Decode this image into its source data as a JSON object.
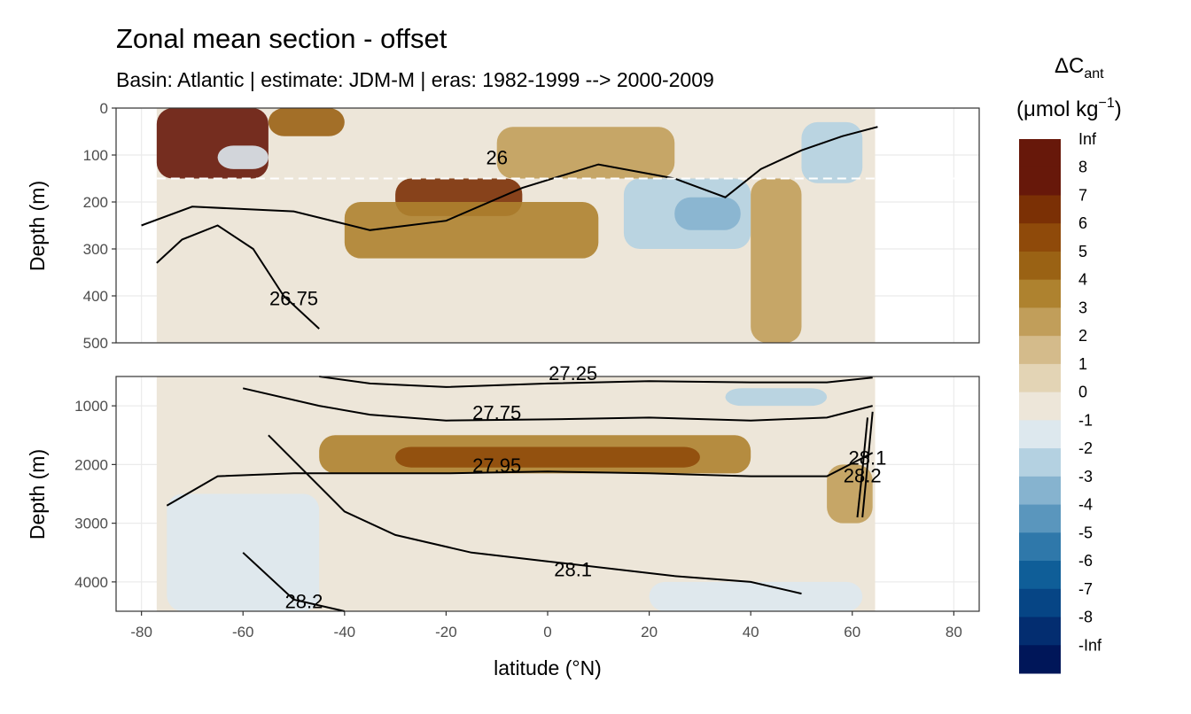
{
  "chart_data": {
    "type": "heatmap",
    "title": "Zonal mean section - offset",
    "subtitle": "Basin: Atlantic | estimate: JDM-M | eras: 1982-1999 --> 2000-2009",
    "xlabel": "latitude (°N)",
    "xlim": [
      -85,
      85
    ],
    "xticks": [
      -80,
      -60,
      -40,
      -20,
      0,
      20,
      40,
      60,
      80
    ],
    "panels": [
      {
        "name": "upper",
        "ylabel": "Depth (m)",
        "ylim": [
          500,
          0
        ],
        "yticks": [
          0,
          100,
          200,
          300,
          400,
          500
        ],
        "reference_line_depth": 150,
        "contours": [
          {
            "label": "26",
            "x": -10,
            "y": 120,
            "points": [
              [
                -80,
                250
              ],
              [
                -70,
                210
              ],
              [
                -50,
                220
              ],
              [
                -35,
                260
              ],
              [
                -20,
                240
              ],
              [
                -5,
                170
              ],
              [
                10,
                120
              ],
              [
                25,
                150
              ],
              [
                35,
                190
              ],
              [
                42,
                130
              ],
              [
                50,
                90
              ],
              [
                58,
                60
              ],
              [
                65,
                40
              ]
            ]
          },
          {
            "label": "26.75",
            "x": -50,
            "y": 420,
            "points": [
              [
                -77,
                330
              ],
              [
                -72,
                280
              ],
              [
                -65,
                250
              ],
              [
                -58,
                300
              ],
              [
                -52,
                400
              ],
              [
                -45,
                470
              ]
            ]
          }
        ],
        "cells": [
          {
            "lat": [
              -77,
              -55
            ],
            "depth": [
              0,
              150
            ],
            "value": 8
          },
          {
            "lat": [
              -55,
              -40
            ],
            "depth": [
              0,
              60
            ],
            "value": 5
          },
          {
            "lat": [
              -30,
              -5
            ],
            "depth": [
              150,
              230
            ],
            "value": 7
          },
          {
            "lat": [
              -40,
              10
            ],
            "depth": [
              200,
              320
            ],
            "value": 4
          },
          {
            "lat": [
              -10,
              25
            ],
            "depth": [
              40,
              150
            ],
            "value": 3
          },
          {
            "lat": [
              15,
              40
            ],
            "depth": [
              150,
              300
            ],
            "value": -2
          },
          {
            "lat": [
              25,
              38
            ],
            "depth": [
              190,
              260
            ],
            "value": -3
          },
          {
            "lat": [
              50,
              62
            ],
            "depth": [
              30,
              160
            ],
            "value": -2
          },
          {
            "lat": [
              -65,
              -55
            ],
            "depth": [
              80,
              130
            ],
            "value": -1
          },
          {
            "lat": [
              40,
              50
            ],
            "depth": [
              150,
              500
            ],
            "value": 3
          }
        ]
      },
      {
        "name": "lower",
        "ylabel": "Depth (m)",
        "ylim": [
          4500,
          500
        ],
        "yticks": [
          1000,
          2000,
          3000,
          4000
        ],
        "contours": [
          {
            "label": "27.25",
            "x": 5,
            "y": 560,
            "points": [
              [
                -45,
                500
              ],
              [
                -35,
                620
              ],
              [
                -20,
                680
              ],
              [
                0,
                620
              ],
              [
                20,
                580
              ],
              [
                40,
                600
              ],
              [
                55,
                600
              ],
              [
                64,
                520
              ]
            ]
          },
          {
            "label": "27.75",
            "x": -10,
            "y": 1230,
            "points": [
              [
                -60,
                700
              ],
              [
                -45,
                1000
              ],
              [
                -35,
                1150
              ],
              [
                -20,
                1250
              ],
              [
                0,
                1230
              ],
              [
                20,
                1200
              ],
              [
                40,
                1250
              ],
              [
                55,
                1200
              ],
              [
                64,
                1000
              ]
            ]
          },
          {
            "label": "27.95",
            "x": -10,
            "y": 2130,
            "points": [
              [
                -75,
                2700
              ],
              [
                -65,
                2200
              ],
              [
                -50,
                2150
              ],
              [
                -35,
                2150
              ],
              [
                -20,
                2150
              ],
              [
                0,
                2120
              ],
              [
                20,
                2150
              ],
              [
                40,
                2200
              ],
              [
                55,
                2200
              ],
              [
                64,
                1800
              ]
            ]
          },
          {
            "label": "28.1",
            "x": 5,
            "y": 3900,
            "points": [
              [
                -55,
                1500
              ],
              [
                -40,
                2800
              ],
              [
                -30,
                3200
              ],
              [
                -15,
                3500
              ],
              [
                0,
                3650
              ],
              [
                15,
                3800
              ],
              [
                25,
                3900
              ],
              [
                40,
                4000
              ],
              [
                50,
                4200
              ]
            ]
          },
          {
            "label": "28.2",
            "x": -48,
            "y": 4450,
            "points": [
              [
                -60,
                3500
              ],
              [
                -50,
                4300
              ],
              [
                -40,
                4500
              ]
            ]
          },
          {
            "label": "28.1",
            "x": 63,
            "y": 2000,
            "points": [
              [
                62,
                2900
              ],
              [
                63,
                2000
              ],
              [
                64,
                1100
              ]
            ]
          },
          {
            "label": "28.2",
            "x": 62,
            "y": 2300,
            "points": [
              [
                61,
                2900
              ],
              [
                62,
                2100
              ],
              [
                63,
                1200
              ]
            ]
          }
        ],
        "cells": [
          {
            "lat": [
              -45,
              40
            ],
            "depth": [
              1500,
              2150
            ],
            "value": 4
          },
          {
            "lat": [
              -30,
              30
            ],
            "depth": [
              1700,
              2050
            ],
            "value": 6
          },
          {
            "lat": [
              35,
              55
            ],
            "depth": [
              700,
              1000
            ],
            "value": -2
          },
          {
            "lat": [
              -75,
              -45
            ],
            "depth": [
              2500,
              4500
            ],
            "value": -1
          },
          {
            "lat": [
              20,
              62
            ],
            "depth": [
              4000,
              4500
            ],
            "value": -1
          },
          {
            "lat": [
              55,
              64
            ],
            "depth": [
              2000,
              3000
            ],
            "value": 3
          }
        ]
      }
    ],
    "legend": {
      "title": "ΔC",
      "title_sub": "ant",
      "units": "(μmol kg",
      "units_sup": "−1",
      "units_end": ")",
      "placement": "right",
      "bins": [
        {
          "label": "Inf",
          "color": "#67180a"
        },
        {
          "label": "8",
          "color": "#67180a"
        },
        {
          "label": "7",
          "color": "#7b3005"
        },
        {
          "label": "6",
          "color": "#8f4a0a"
        },
        {
          "label": "5",
          "color": "#9a6214"
        },
        {
          "label": "4",
          "color": "#ae822f"
        },
        {
          "label": "3",
          "color": "#c19e5a"
        },
        {
          "label": "2",
          "color": "#d4bb8b"
        },
        {
          "label": "1",
          "color": "#e3d4b5"
        },
        {
          "label": "0",
          "color": "#ede6d9"
        },
        {
          "label": "-1",
          "color": "#dde8ee"
        },
        {
          "label": "-2",
          "color": "#b4d1e1"
        },
        {
          "label": "-3",
          "color": "#86b3cf"
        },
        {
          "label": "-4",
          "color": "#5a96bd"
        },
        {
          "label": "-5",
          "color": "#2f78aa"
        },
        {
          "label": "-6",
          "color": "#0f5e98"
        },
        {
          "label": "-7",
          "color": "#064585"
        },
        {
          "label": "-8",
          "color": "#032d70"
        },
        {
          "label": "-Inf",
          "color": "#001659"
        }
      ]
    }
  }
}
